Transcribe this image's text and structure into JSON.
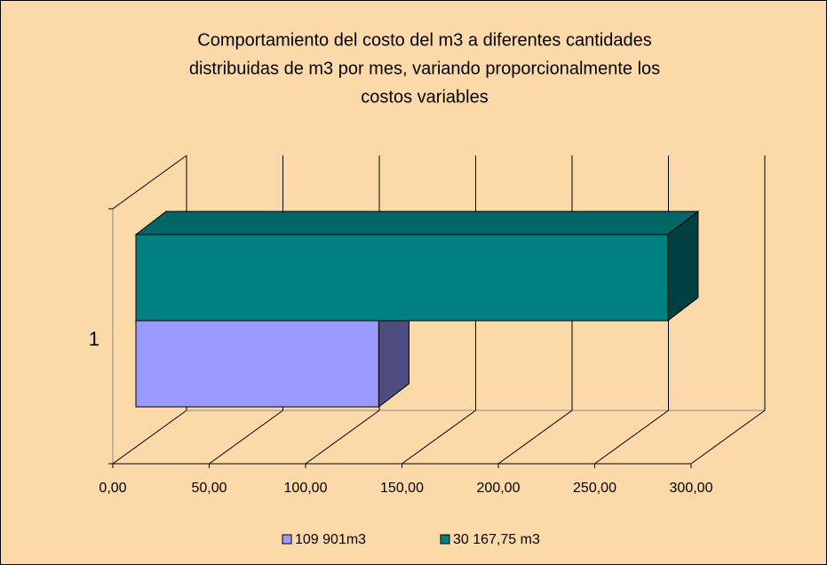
{
  "chart_data": {
    "type": "bar3d_horizontal",
    "title": [
      "Comportamiento del costo del m3 a diferentes cantidades",
      "distribuidas de m3 por mes, variando proporcionalmente los",
      "costos variables"
    ],
    "categories": [
      "1"
    ],
    "series": [
      {
        "name": "109 901m3",
        "color": "#9999FF",
        "values": [
          126
        ]
      },
      {
        "name": "30 167,75 m3",
        "color": "#008080",
        "values": [
          276
        ]
      }
    ],
    "xlim": [
      0,
      300
    ],
    "xticks": [
      {
        "value": 0,
        "label": "0,00"
      },
      {
        "value": 50,
        "label": "50,00"
      },
      {
        "value": 100,
        "label": "100,00"
      },
      {
        "value": 150,
        "label": "150,00"
      },
      {
        "value": 200,
        "label": "200,00"
      },
      {
        "value": 250,
        "label": "250,00"
      },
      {
        "value": 300,
        "label": "300,00"
      }
    ],
    "grid": true,
    "legend": "bottom"
  }
}
